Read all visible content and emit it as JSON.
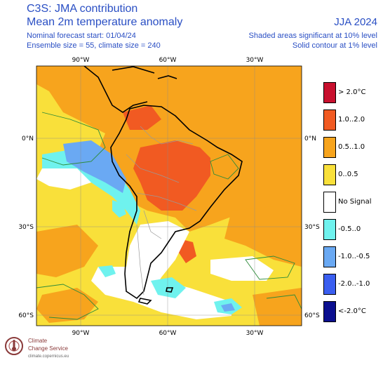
{
  "header": {
    "title": "C3S: JMA contribution",
    "subtitle": "Mean 2m temperature anomaly",
    "season": "JJA 2024",
    "forecast_start": "Nominal forecast start: 01/04/24",
    "ensemble": "Ensemble size = 55, climate size = 240",
    "shaded_note": "Shaded areas significant at 10% level",
    "contour_note": "Solid contour at 1% level"
  },
  "map": {
    "top_lon_labels": [
      "90°W",
      "60°W",
      "30°W"
    ],
    "bottom_lon_labels": [
      "90°W",
      "60°W",
      "30°W"
    ],
    "left_lat_labels": [
      "0°N",
      "30°S",
      "60°S"
    ],
    "right_lat_labels": [
      "0°N",
      "30°S",
      "60°S"
    ]
  },
  "legend": {
    "items": [
      {
        "label": "> 2.0°C",
        "color": "#c8102e"
      },
      {
        "label": "1.0..2.0",
        "color": "#f15a22"
      },
      {
        "label": "0.5..1.0",
        "color": "#f7a41d"
      },
      {
        "label": "0..0.5",
        "color": "#f9e03a"
      },
      {
        "label": "No Signal",
        "color": "#ffffff"
      },
      {
        "label": "-0.5..0",
        "color": "#6ff2ee"
      },
      {
        "label": "-1.0..-0.5",
        "color": "#6aa9f3"
      },
      {
        "label": "-2.0..-1.0",
        "color": "#3a5ef0"
      },
      {
        "label": "<-2.0°C",
        "color": "#0b0f8f"
      }
    ]
  },
  "logo": {
    "name_line1": "Climate",
    "name_line2": "Change Service",
    "url": "climate.copernicus.eu"
  }
}
